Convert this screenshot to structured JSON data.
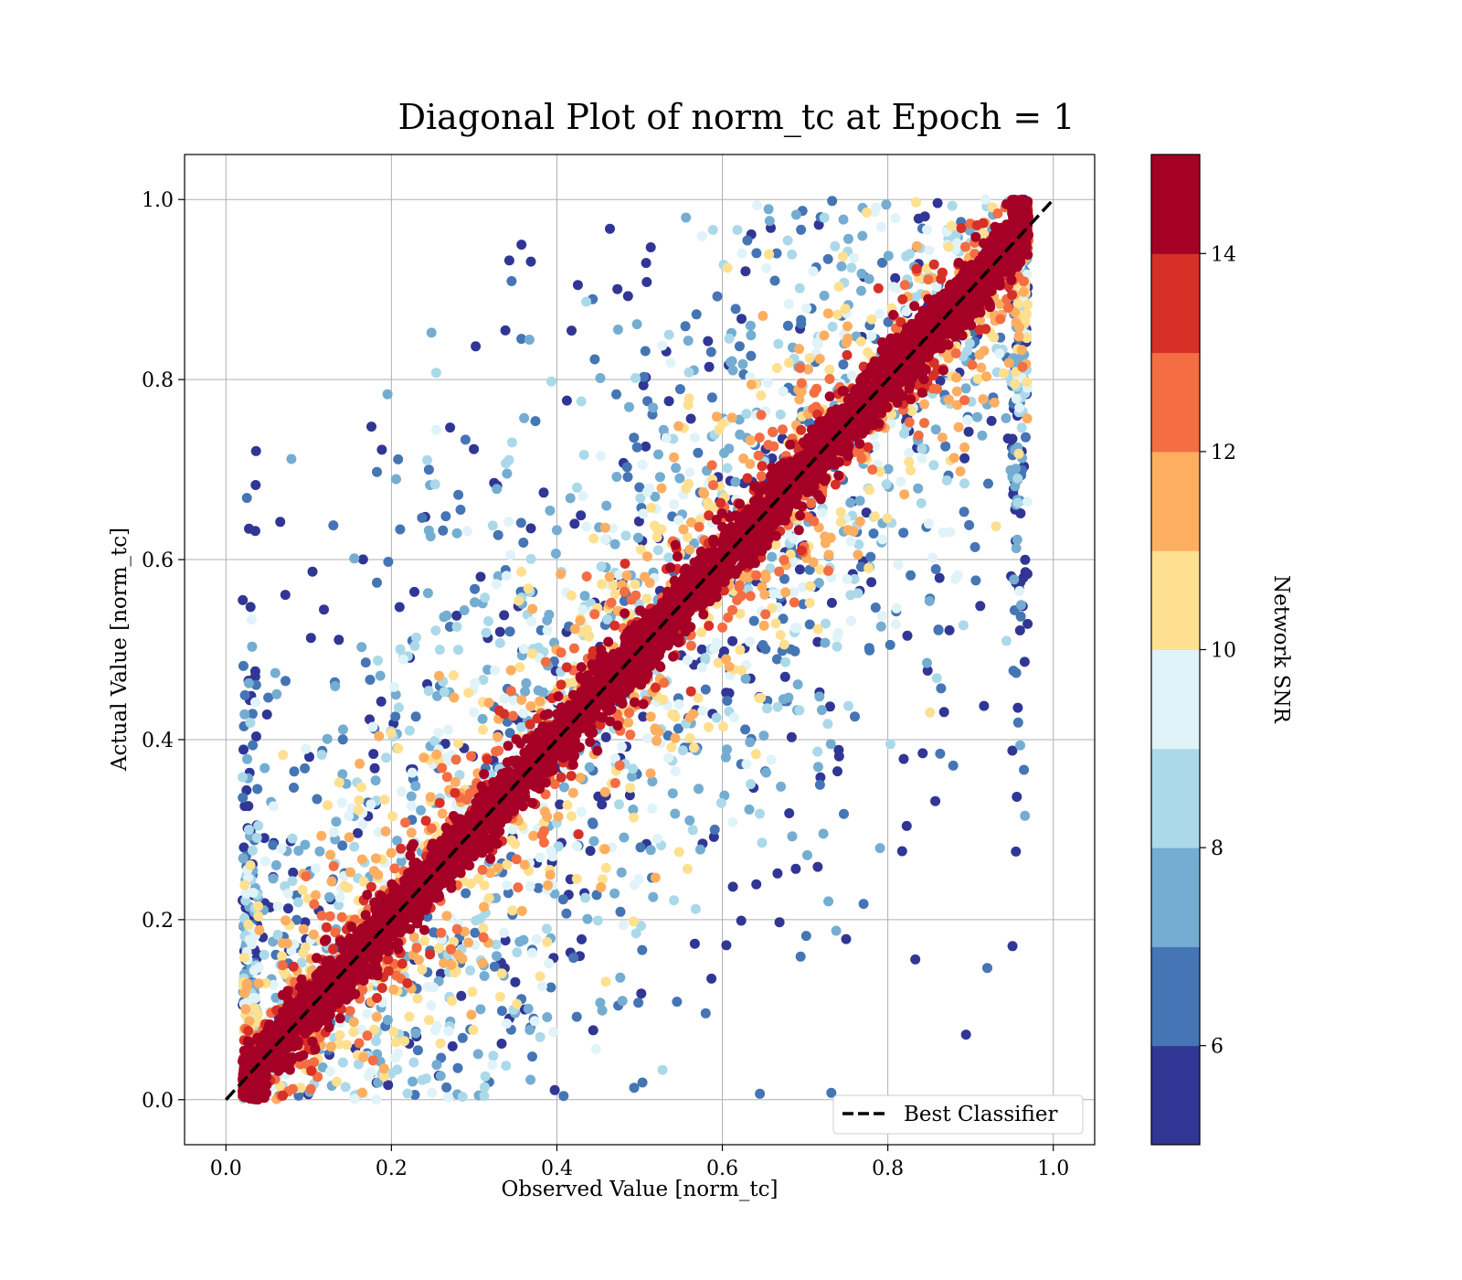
{
  "chart_data": {
    "type": "scatter",
    "title": "Diagonal Plot of norm_tc at Epoch = 1",
    "xlabel": "Observed Value [norm_tc]",
    "ylabel": "Actual Value [norm_tc]",
    "xlim": [
      -0.05,
      1.05
    ],
    "ylim": [
      -0.05,
      1.05
    ],
    "x_ticks": [
      "0.0",
      "0.2",
      "0.4",
      "0.6",
      "0.8",
      "1.0"
    ],
    "y_ticks": [
      "0.0",
      "0.2",
      "0.4",
      "0.6",
      "0.8",
      "1.0"
    ],
    "grid": true,
    "legend": {
      "position": "lower-right",
      "entries": [
        {
          "label": "Best Classifier",
          "style": "dashed",
          "color": "#000000"
        }
      ]
    },
    "reference_line": {
      "label": "Best Classifier",
      "x": [
        0,
        1
      ],
      "y": [
        0,
        1
      ],
      "style": "dashed"
    },
    "point_distribution": {
      "description_values": "observed ≈ actual for high SNR; spread increases as SNR decreases",
      "x_range": [
        0.02,
        0.97
      ],
      "y_range": [
        0.0,
        1.0
      ],
      "count_approx": 60000
    },
    "colorbar": {
      "label": "Network SNR",
      "range": [
        5,
        15
      ],
      "ticks": [
        "6",
        "8",
        "10",
        "12",
        "14"
      ],
      "tick_values": [
        6,
        8,
        10,
        12,
        14
      ],
      "colormap": "RdYlBu_r",
      "colors": [
        "#313695",
        "#4575b4",
        "#74add1",
        "#abd9e9",
        "#e0f3f8",
        "#fee090",
        "#fdae61",
        "#f46d43",
        "#d73027",
        "#a50026"
      ]
    }
  }
}
